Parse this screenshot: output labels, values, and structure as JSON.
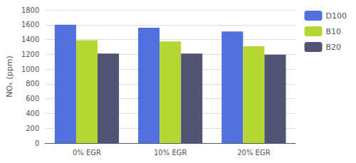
{
  "chart_data": {
    "type": "bar",
    "categories": [
      "0% EGR",
      "10% EGR",
      "20% EGR"
    ],
    "series": [
      {
        "name": "D100",
        "values": [
          1600,
          1560,
          1510
        ]
      },
      {
        "name": "B10",
        "values": [
          1390,
          1375,
          1310
        ]
      },
      {
        "name": "B20",
        "values": [
          1210,
          1210,
          1195
        ]
      }
    ],
    "ylabel": "NOₓ (ppm)",
    "ylim": [
      0,
      1800
    ],
    "yticks": [
      0,
      200,
      400,
      600,
      800,
      1000,
      1200,
      1400,
      1600,
      1800
    ],
    "grid": true,
    "legend": "right"
  }
}
